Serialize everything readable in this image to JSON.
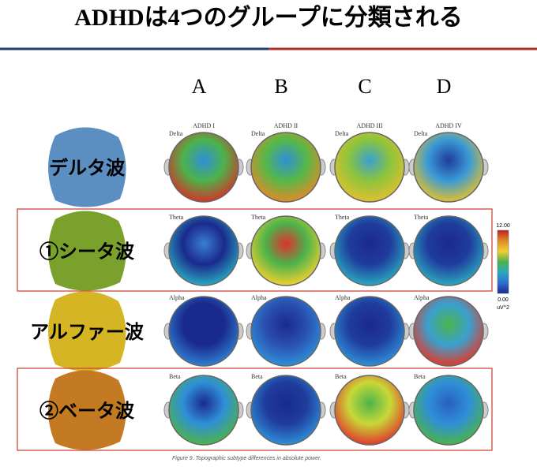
{
  "title": "ADHDは4つのグループに分類される",
  "columns": [
    "A",
    "B",
    "C",
    "D"
  ],
  "subtypes": [
    "ADHD I",
    "ADHD II",
    "ADHD III",
    "ADHD IV"
  ],
  "rows": [
    {
      "label": "デルタ波",
      "color": "#5b8ec1",
      "band": "Delta",
      "highlight": false,
      "maps": [
        [
          "#2f8fd8",
          "#4cb34a",
          "#d2342a"
        ],
        [
          "#2f8fd8",
          "#56b848",
          "#e08a2a"
        ],
        [
          "#3aa0d0",
          "#8cc43c",
          "#e0c030"
        ],
        [
          "#1f3c9c",
          "#3a9ad6",
          "#e0c030"
        ]
      ]
    },
    {
      "label": "①シータ波",
      "color": "#7aa12c",
      "band": "Theta",
      "highlight": true,
      "maps": [
        [
          "#3a7fd0",
          "#1a2a8c",
          "#2aa8c0"
        ],
        [
          "#e03030",
          "#4cb34a",
          "#f0d030"
        ],
        [
          "#1a2a8c",
          "#1f3c9c",
          "#2aa8c0"
        ],
        [
          "#1a2a8c",
          "#1f3c9c",
          "#2aa8c0"
        ]
      ]
    },
    {
      "label": "アルファー波",
      "color": "#d6b524",
      "band": "Alpha",
      "highlight": false,
      "maps": [
        [
          "#1a2a8c",
          "#1a2a8c",
          "#2f7fd0"
        ],
        [
          "#1a2a8c",
          "#2a4fb0",
          "#2f8fd8"
        ],
        [
          "#1a2a8c",
          "#1f3c9c",
          "#2f8fd8"
        ],
        [
          "#4cb34a",
          "#3aa0d0",
          "#e03a2a"
        ]
      ]
    },
    {
      "label": "②ベータ波",
      "color": "#c37a22",
      "band": "Beta",
      "highlight": true,
      "maps": [
        [
          "#1a2a8c",
          "#2f8fd8",
          "#4cb34a"
        ],
        [
          "#1a2a8c",
          "#1f3c9c",
          "#2f8fd8"
        ],
        [
          "#4cb34a",
          "#c8d838",
          "#e03a2a"
        ],
        [
          "#2a5fc0",
          "#2f8fd8",
          "#4cb34a"
        ]
      ]
    }
  ],
  "scale": {
    "max": "12.00",
    "min": "0.00",
    "unit": "uV^2"
  },
  "caption": "Figure 9. Topographic subtype differences in absolute power."
}
